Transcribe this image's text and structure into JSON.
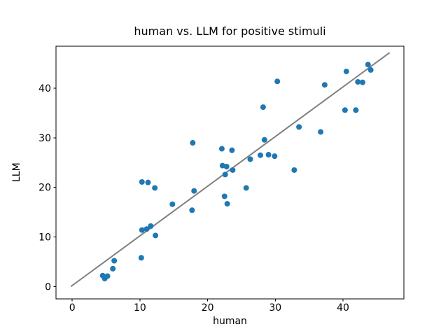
{
  "figure": {
    "title": "human vs. LLM for positive stimuli",
    "xlabel": "human",
    "ylabel": "LLM"
  },
  "chart_data": {
    "type": "scatter",
    "title": "human vs. LLM for positive stimuli",
    "xlabel": "human",
    "ylabel": "LLM",
    "xlim": [
      -2.4,
      49.0
    ],
    "ylim": [
      -2.5,
      48.5
    ],
    "xticks": [
      0,
      10,
      20,
      30,
      40
    ],
    "yticks": [
      0,
      10,
      20,
      30,
      40
    ],
    "grid": false,
    "legend": "none",
    "marker_color": "#1f77b4",
    "line_color": "#808080",
    "axis_color": "#000000",
    "identity_line": {
      "x1": -0.2,
      "y1": 0.0,
      "x2": 46.9,
      "y2": 47.2
    },
    "points": [
      [
        4.5,
        2.2
      ],
      [
        5.2,
        2.1
      ],
      [
        4.8,
        1.6
      ],
      [
        6.0,
        3.6
      ],
      [
        6.2,
        5.2
      ],
      [
        10.2,
        5.8
      ],
      [
        10.3,
        11.4
      ],
      [
        11.0,
        11.6
      ],
      [
        11.6,
        12.2
      ],
      [
        12.3,
        10.3
      ],
      [
        10.3,
        21.1
      ],
      [
        11.2,
        21.0
      ],
      [
        12.2,
        19.9
      ],
      [
        14.8,
        16.6
      ],
      [
        17.7,
        15.4
      ],
      [
        18.0,
        19.3
      ],
      [
        17.8,
        29.0
      ],
      [
        22.1,
        27.8
      ],
      [
        23.6,
        27.5
      ],
      [
        22.2,
        24.4
      ],
      [
        22.8,
        24.2
      ],
      [
        23.7,
        23.5
      ],
      [
        22.6,
        22.6
      ],
      [
        22.5,
        18.2
      ],
      [
        22.9,
        16.7
      ],
      [
        25.7,
        19.9
      ],
      [
        26.3,
        25.7
      ],
      [
        27.8,
        26.5
      ],
      [
        29.0,
        26.6
      ],
      [
        29.9,
        26.3
      ],
      [
        28.4,
        29.6
      ],
      [
        28.2,
        36.2
      ],
      [
        30.3,
        41.4
      ],
      [
        32.8,
        23.5
      ],
      [
        33.5,
        32.2
      ],
      [
        36.7,
        31.2
      ],
      [
        37.3,
        40.7
      ],
      [
        40.3,
        35.6
      ],
      [
        41.9,
        35.6
      ],
      [
        40.5,
        43.4
      ],
      [
        42.2,
        41.3
      ],
      [
        42.9,
        41.2
      ],
      [
        43.7,
        44.8
      ],
      [
        44.1,
        43.7
      ]
    ]
  }
}
